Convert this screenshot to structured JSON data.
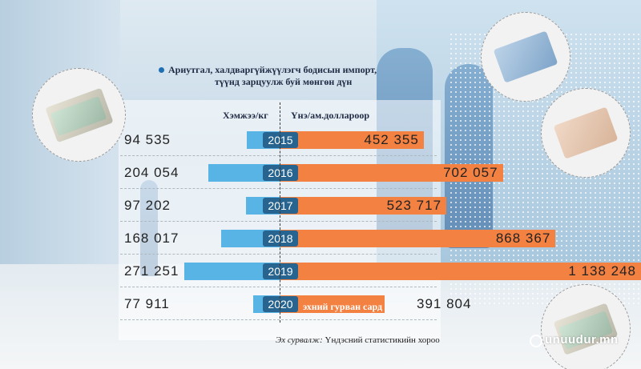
{
  "chart_data": {
    "type": "bar",
    "title": "Ариутгал, халдваргүйжүүлэгч бодисын импорт, түүнд зарцуулж буй мөнгөн дүн",
    "categories": [
      "2015",
      "2016",
      "2017",
      "2018",
      "2019",
      "2020"
    ],
    "series": [
      {
        "name": "Хэмжээ/кг",
        "values": [
          94535,
          204054,
          97202,
          168017,
          271251,
          77911
        ],
        "labels": [
          "94 535",
          "204 054",
          "97 202",
          "168 017",
          "271 251",
          "77 911"
        ]
      },
      {
        "name": "Үнэ/ам.доллароор",
        "values": [
          452355,
          702057,
          523717,
          868367,
          1138248,
          391804
        ],
        "labels": [
          "452 355",
          "702 057",
          "523 717",
          "868 367",
          "1 138 248",
          "391 804"
        ]
      }
    ],
    "annotation": "эхний гурван сард",
    "colors": {
      "left_bar": "#58b4e4",
      "right_bar": "#f38141",
      "year_badge": "#27648f"
    },
    "legend_placement": "top"
  },
  "title_line1": "Ариутгал, халдваргүйжүүлэгч бодисын импорт,",
  "title_line2": "түүнд зарцуулж буй мөнгөн дүн",
  "source_label": "Эх сурвалж:",
  "source_text": "Үндэсний статистикийн хороо",
  "watermark": "unuudur.mn"
}
